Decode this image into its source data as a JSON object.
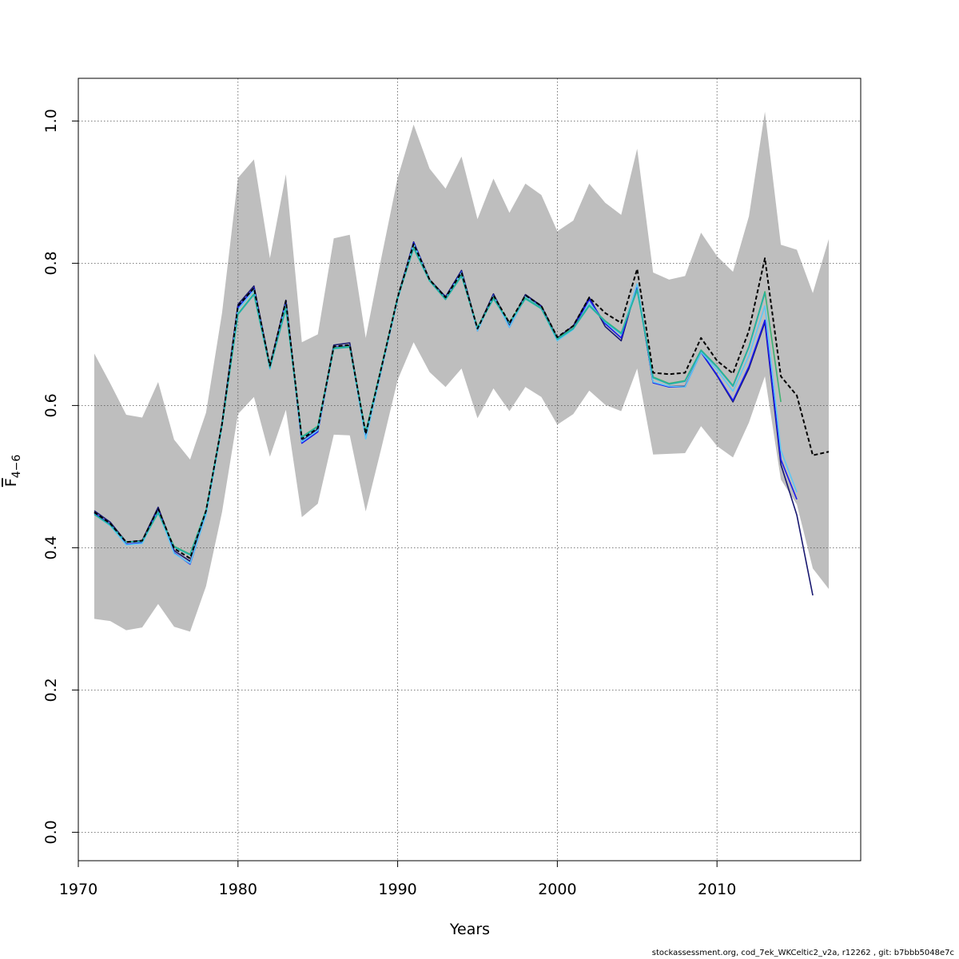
{
  "chart_data": {
    "type": "line",
    "xlabel": "Years",
    "ylabel": "F",
    "ylabel_subscript": "4−6",
    "xlim": [
      1970,
      2019
    ],
    "ylim": [
      -0.04,
      1.06
    ],
    "x_ticks": [
      1970,
      1980,
      1990,
      2000,
      2010
    ],
    "y_ticks": [
      0.0,
      0.2,
      0.4,
      0.6,
      0.8,
      1.0
    ],
    "x_tick_labels": [
      "1970",
      "1980",
      "1990",
      "2000",
      "2010"
    ],
    "y_tick_labels": [
      "0.0",
      "0.2",
      "0.4",
      "0.6",
      "0.8",
      "1.0"
    ],
    "grid": true,
    "confidence_band": {
      "color": "#bebebe",
      "x": [
        1971,
        1972,
        1973,
        1974,
        1975,
        1976,
        1977,
        1978,
        1979,
        1980,
        1981,
        1982,
        1983,
        1984,
        1985,
        1986,
        1987,
        1988,
        1989,
        1990,
        1991,
        1992,
        1993,
        1994,
        1995,
        1996,
        1997,
        1998,
        1999,
        2000,
        2001,
        2002,
        2003,
        2004,
        2005,
        2006,
        2007,
        2008,
        2009,
        2010,
        2011,
        2012,
        2013,
        2014,
        2015,
        2016,
        2017
      ],
      "upper": [
        0.673,
        0.631,
        0.587,
        0.583,
        0.633,
        0.552,
        0.524,
        0.59,
        0.73,
        0.92,
        0.946,
        0.807,
        0.925,
        0.689,
        0.7,
        0.835,
        0.84,
        0.695,
        0.81,
        0.92,
        0.995,
        0.933,
        0.905,
        0.95,
        0.862,
        0.919,
        0.871,
        0.912,
        0.896,
        0.845,
        0.86,
        0.912,
        0.885,
        0.868,
        0.961,
        0.787,
        0.777,
        0.782,
        0.843,
        0.81,
        0.788,
        0.866,
        1.013,
        0.826,
        0.819,
        0.758,
        0.834
      ],
      "lower": [
        0.3,
        0.297,
        0.284,
        0.288,
        0.321,
        0.289,
        0.282,
        0.346,
        0.45,
        0.588,
        0.612,
        0.528,
        0.594,
        0.443,
        0.462,
        0.559,
        0.558,
        0.451,
        0.542,
        0.636,
        0.689,
        0.647,
        0.626,
        0.652,
        0.582,
        0.624,
        0.592,
        0.626,
        0.612,
        0.573,
        0.588,
        0.621,
        0.601,
        0.592,
        0.652,
        0.531,
        0.532,
        0.533,
        0.571,
        0.543,
        0.527,
        0.576,
        0.641,
        0.496,
        0.461,
        0.371,
        0.342
      ]
    },
    "series": [
      {
        "color": "#191970",
        "dashed": false,
        "x": [
          1971,
          1972,
          1973,
          1974,
          1975,
          1976,
          1977,
          1978,
          1979,
          1980,
          1981,
          1982,
          1983,
          1984,
          1985,
          1986,
          1987,
          1988,
          1989,
          1990,
          1991,
          1992,
          1993,
          1994,
          1995,
          1996,
          1997,
          1998,
          1999,
          2000,
          2001,
          2002,
          2003,
          2004,
          2005,
          2006,
          2007,
          2008,
          2009,
          2010,
          2011,
          2012,
          2013,
          2014,
          2015,
          2016
        ],
        "values": [
          0.452,
          0.436,
          0.408,
          0.41,
          0.457,
          0.396,
          0.381,
          0.45,
          0.575,
          0.742,
          0.768,
          0.655,
          0.748,
          0.55,
          0.567,
          0.685,
          0.688,
          0.557,
          0.655,
          0.752,
          0.83,
          0.777,
          0.753,
          0.79,
          0.708,
          0.757,
          0.712,
          0.756,
          0.74,
          0.695,
          0.712,
          0.752,
          0.711,
          0.691,
          0.77,
          0.632,
          0.627,
          0.627,
          0.675,
          0.642,
          0.605,
          0.652,
          0.717,
          0.517,
          0.446,
          0.333
        ]
      },
      {
        "color": "#1a1aee",
        "dashed": false,
        "x": [
          1971,
          1972,
          1973,
          1974,
          1975,
          1976,
          1977,
          1978,
          1979,
          1980,
          1981,
          1982,
          1983,
          1984,
          1985,
          1986,
          1987,
          1988,
          1989,
          1990,
          1991,
          1992,
          1993,
          1994,
          1995,
          1996,
          1997,
          1998,
          1999,
          2000,
          2001,
          2002,
          2003,
          2004,
          2005,
          2006,
          2007,
          2008,
          2009,
          2010,
          2011,
          2012,
          2013,
          2014,
          2015
        ],
        "values": [
          0.449,
          0.433,
          0.405,
          0.407,
          0.453,
          0.393,
          0.377,
          0.447,
          0.572,
          0.738,
          0.765,
          0.652,
          0.745,
          0.547,
          0.563,
          0.682,
          0.684,
          0.554,
          0.652,
          0.75,
          0.829,
          0.776,
          0.751,
          0.788,
          0.705,
          0.755,
          0.71,
          0.753,
          0.738,
          0.692,
          0.709,
          0.749,
          0.715,
          0.695,
          0.768,
          0.632,
          0.626,
          0.626,
          0.675,
          0.643,
          0.607,
          0.655,
          0.72,
          0.524,
          0.468
        ]
      },
      {
        "color": "#5ec8f5",
        "dashed": false,
        "x": [
          1971,
          1972,
          1973,
          1974,
          1975,
          1976,
          1977,
          1978,
          1979,
          1980,
          1981,
          1982,
          1983,
          1984,
          1985,
          1986,
          1987,
          1988,
          1989,
          1990,
          1991,
          1992,
          1993,
          1994,
          1995,
          1996,
          1997,
          1998,
          1999,
          2000,
          2001,
          2002,
          2003,
          2004,
          2005,
          2006,
          2007,
          2008,
          2009,
          2010,
          2011,
          2012,
          2013,
          2014,
          2015
        ],
        "values": [
          0.447,
          0.431,
          0.404,
          0.406,
          0.451,
          0.392,
          0.378,
          0.446,
          0.571,
          0.735,
          0.762,
          0.651,
          0.742,
          0.549,
          0.565,
          0.681,
          0.683,
          0.553,
          0.652,
          0.749,
          0.827,
          0.776,
          0.75,
          0.787,
          0.705,
          0.754,
          0.71,
          0.753,
          0.737,
          0.691,
          0.707,
          0.744,
          0.717,
          0.7,
          0.771,
          0.633,
          0.627,
          0.626,
          0.675,
          0.65,
          0.62,
          0.67,
          0.74,
          0.537,
          0.478
        ]
      },
      {
        "color": "#3cb371",
        "dashed": false,
        "x": [
          1971,
          1972,
          1973,
          1974,
          1975,
          1976,
          1977,
          1978,
          1979,
          1980,
          1981,
          1982,
          1983,
          1984,
          1985,
          1986,
          1987,
          1988,
          1989,
          1990,
          1991,
          1992,
          1993,
          1994,
          1995,
          1996,
          1997,
          1998,
          1999,
          2000,
          2001,
          2002,
          2003,
          2004,
          2005,
          2006,
          2007,
          2008,
          2009,
          2010,
          2011,
          2012,
          2013,
          2014
        ],
        "values": [
          0.447,
          0.432,
          0.408,
          0.409,
          0.449,
          0.402,
          0.391,
          0.453,
          0.573,
          0.729,
          0.757,
          0.654,
          0.737,
          0.556,
          0.571,
          0.681,
          0.683,
          0.563,
          0.656,
          0.752,
          0.822,
          0.776,
          0.75,
          0.783,
          0.71,
          0.751,
          0.717,
          0.751,
          0.737,
          0.694,
          0.709,
          0.741,
          0.719,
          0.702,
          0.763,
          0.64,
          0.631,
          0.635,
          0.678,
          0.655,
          0.628,
          0.683,
          0.76,
          0.605
        ]
      },
      {
        "color": "#20b2aa",
        "dashed": false,
        "x": [
          1971,
          1972,
          1973,
          1974,
          1975,
          1976,
          1977,
          1978,
          1979,
          1980,
          1981,
          1982,
          1983,
          1984,
          1985,
          1986,
          1987,
          1988,
          1989,
          1990,
          1991,
          1992,
          1993,
          1994,
          1995,
          1996,
          1997,
          1998,
          1999,
          2000,
          2001,
          2002,
          2003,
          2004,
          2005,
          2006,
          2007,
          2008,
          2009,
          2010,
          2011,
          2012,
          2013
        ],
        "values": [
          0.447,
          0.432,
          0.408,
          0.409,
          0.449,
          0.401,
          0.39,
          0.452,
          0.572,
          0.728,
          0.756,
          0.653,
          0.736,
          0.555,
          0.57,
          0.68,
          0.682,
          0.562,
          0.655,
          0.751,
          0.821,
          0.775,
          0.749,
          0.782,
          0.709,
          0.75,
          0.716,
          0.75,
          0.736,
          0.693,
          0.708,
          0.74,
          0.718,
          0.701,
          0.762,
          0.639,
          0.63,
          0.634,
          0.677,
          0.654,
          0.627,
          0.682,
          0.758
        ]
      },
      {
        "color": "#000000",
        "dashed": true,
        "x": [
          1971,
          1972,
          1973,
          1974,
          1975,
          1976,
          1977,
          1978,
          1979,
          1980,
          1981,
          1982,
          1983,
          1984,
          1985,
          1986,
          1987,
          1988,
          1989,
          1990,
          1991,
          1992,
          1993,
          1994,
          1995,
          1996,
          1997,
          1998,
          1999,
          2000,
          2001,
          2002,
          2003,
          2004,
          2005,
          2006,
          2007,
          2008,
          2009,
          2010,
          2011,
          2012,
          2013,
          2014,
          2015,
          2016,
          2017
        ],
        "values": [
          0.45,
          0.434,
          0.408,
          0.41,
          0.455,
          0.399,
          0.385,
          0.452,
          0.574,
          0.74,
          0.765,
          0.656,
          0.747,
          0.553,
          0.568,
          0.683,
          0.685,
          0.56,
          0.655,
          0.752,
          0.827,
          0.777,
          0.752,
          0.787,
          0.708,
          0.755,
          0.716,
          0.755,
          0.74,
          0.696,
          0.712,
          0.752,
          0.73,
          0.716,
          0.792,
          0.646,
          0.644,
          0.646,
          0.695,
          0.663,
          0.645,
          0.705,
          0.807,
          0.641,
          0.614,
          0.53,
          0.535
        ]
      }
    ]
  },
  "footer": {
    "text": "stockassessment.org, cod_7ek_WKCeltic2_v2a, r12262 , git: b7bbb5048e7c"
  }
}
